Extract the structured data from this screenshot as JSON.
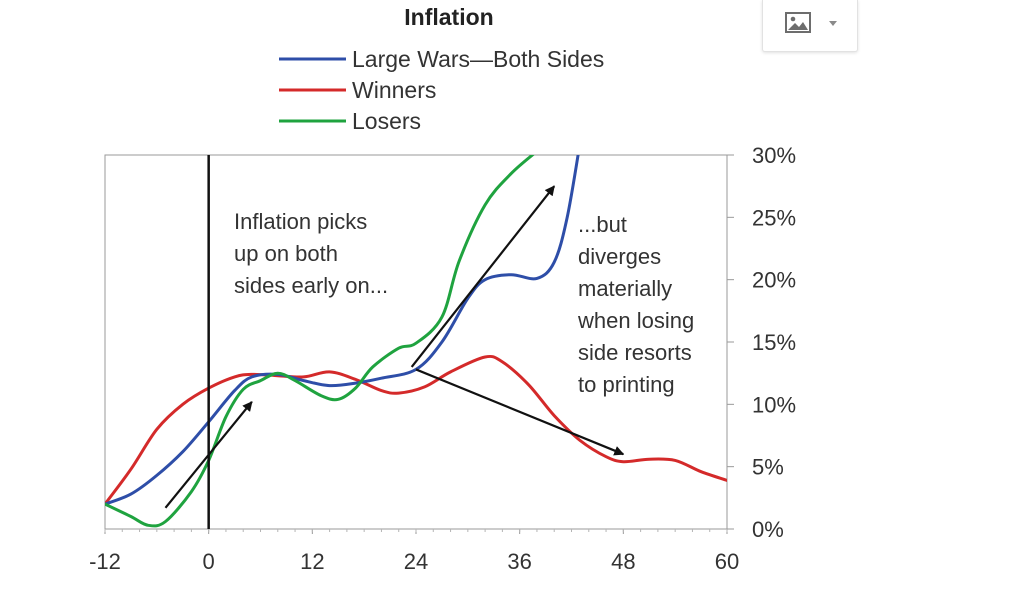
{
  "toolbar": {
    "image_button_icon": "image-icon",
    "dropdown_icon": "chevron-down-icon"
  },
  "chart_data": {
    "type": "line",
    "title": "Inflation",
    "xlabel": "",
    "ylabel": "",
    "xlim": [
      -12,
      60
    ],
    "ylim": [
      0,
      30
    ],
    "x_ticks": [
      -12,
      0,
      12,
      24,
      36,
      48,
      60
    ],
    "x_tick_labels": [
      "-12",
      "0",
      "12",
      "24",
      "36",
      "48",
      "60"
    ],
    "y_ticks": [
      0,
      5,
      10,
      15,
      20,
      25,
      30
    ],
    "y_tick_labels": [
      "0%",
      "5%",
      "10%",
      "15%",
      "20%",
      "25%",
      "30%"
    ],
    "y_axis_side": "right",
    "grid": false,
    "legend_position": "top-center",
    "vertical_marker_x": 0,
    "series": [
      {
        "name": "Large Wars—Both Sides",
        "color": "#2e4ea8",
        "points": [
          [
            -12,
            2
          ],
          [
            -9,
            2.8
          ],
          [
            -6,
            4.3
          ],
          [
            -3,
            6.2
          ],
          [
            0,
            8.6
          ],
          [
            3,
            11.1
          ],
          [
            5,
            12.2
          ],
          [
            8,
            12.4
          ],
          [
            11,
            11.9
          ],
          [
            14,
            11.5
          ],
          [
            17,
            11.7
          ],
          [
            20,
            12.1
          ],
          [
            24,
            12.8
          ],
          [
            27,
            15
          ],
          [
            30,
            18.5
          ],
          [
            32,
            20
          ],
          [
            35,
            20.4
          ],
          [
            38,
            20.1
          ],
          [
            40,
            21.4
          ],
          [
            41.5,
            25
          ],
          [
            43,
            31
          ]
        ]
      },
      {
        "name": "Winners",
        "color": "#d42a2a",
        "points": [
          [
            -12,
            2
          ],
          [
            -9,
            4.8
          ],
          [
            -6,
            8
          ],
          [
            -3,
            10
          ],
          [
            0,
            11.3
          ],
          [
            3,
            12.2
          ],
          [
            5,
            12.4
          ],
          [
            8,
            12.3
          ],
          [
            11,
            12.2
          ],
          [
            14,
            12.6
          ],
          [
            17,
            12
          ],
          [
            20,
            11.1
          ],
          [
            22,
            10.9
          ],
          [
            25,
            11.4
          ],
          [
            28,
            12.6
          ],
          [
            32,
            13.8
          ],
          [
            34,
            13.4
          ],
          [
            37,
            11.6
          ],
          [
            40,
            9.1
          ],
          [
            43,
            7.1
          ],
          [
            46,
            5.8
          ],
          [
            48,
            5.4
          ],
          [
            51,
            5.6
          ],
          [
            54,
            5.5
          ],
          [
            57,
            4.6
          ],
          [
            60,
            3.9
          ]
        ]
      },
      {
        "name": "Losers",
        "color": "#1fa33f",
        "points": [
          [
            -12,
            2
          ],
          [
            -9,
            1
          ],
          [
            -7,
            0.3
          ],
          [
            -5,
            0.6
          ],
          [
            -2,
            3
          ],
          [
            0,
            5.5
          ],
          [
            2,
            9
          ],
          [
            4,
            11.2
          ],
          [
            6,
            11.9
          ],
          [
            8,
            12.5
          ],
          [
            10,
            11.9
          ],
          [
            13,
            10.7
          ],
          [
            15,
            10.4
          ],
          [
            17,
            11.3
          ],
          [
            19,
            13
          ],
          [
            22,
            14.5
          ],
          [
            24,
            14.9
          ],
          [
            27,
            17
          ],
          [
            29,
            21.5
          ],
          [
            32,
            26
          ],
          [
            35,
            28.5
          ],
          [
            38,
            30.3
          ]
        ]
      }
    ],
    "annotations": [
      {
        "text_lines": [
          "Inflation picks",
          "up on both",
          "sides early on..."
        ]
      },
      {
        "text_lines": [
          "...but",
          "diverges",
          "materially",
          "when losing",
          "side resorts",
          "to printing"
        ]
      }
    ],
    "arrows": [
      {
        "from": [
          -5,
          1.7
        ],
        "to": [
          5,
          10.2
        ]
      },
      {
        "from": [
          23.5,
          13
        ],
        "to": [
          40,
          27.5
        ]
      },
      {
        "from": [
          24,
          12.8
        ],
        "to": [
          48,
          6
        ]
      }
    ]
  }
}
